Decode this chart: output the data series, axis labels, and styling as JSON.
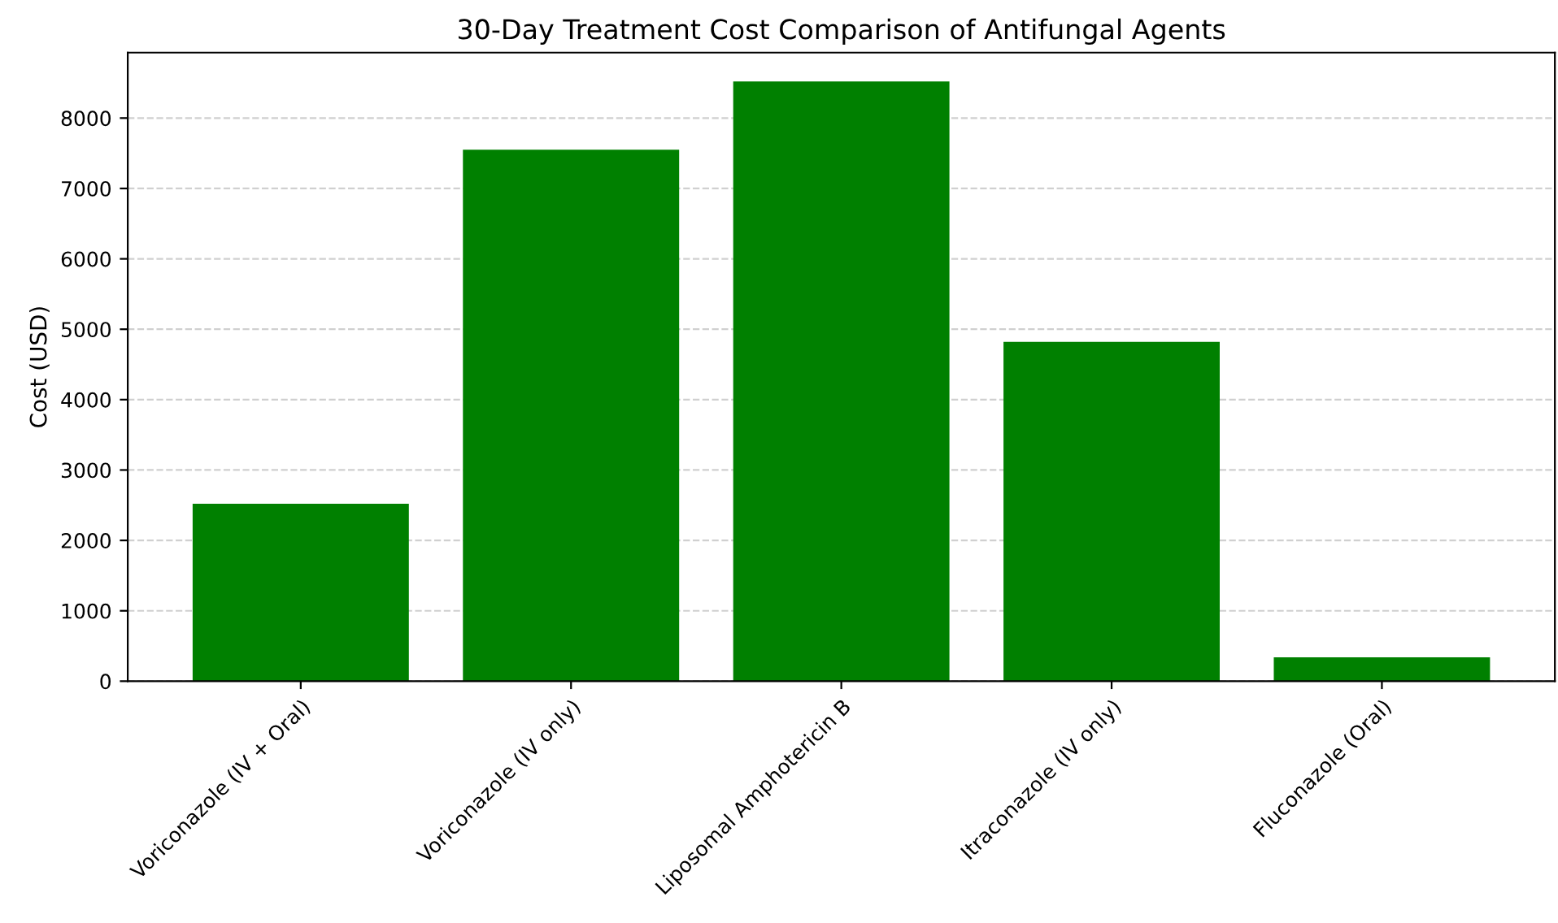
{
  "chart_data": {
    "type": "bar",
    "title": "30-Day Treatment Cost Comparison of Antifungal Agents",
    "ylabel": "Cost (USD)",
    "categories": [
      "Voriconazole (IV + Oral)",
      "Voriconazole (IV only)",
      "Liposomal Amphotericin B",
      "Itraconazole (IV only)",
      "Fluconazole (Oral)"
    ],
    "values": [
      2520,
      7550,
      8520,
      4820,
      340
    ],
    "color": "#008000",
    "ylim": [
      0,
      8930
    ],
    "yticks": [
      0,
      1000,
      2000,
      3000,
      4000,
      5000,
      6000,
      7000,
      8000
    ],
    "grid": "y"
  }
}
